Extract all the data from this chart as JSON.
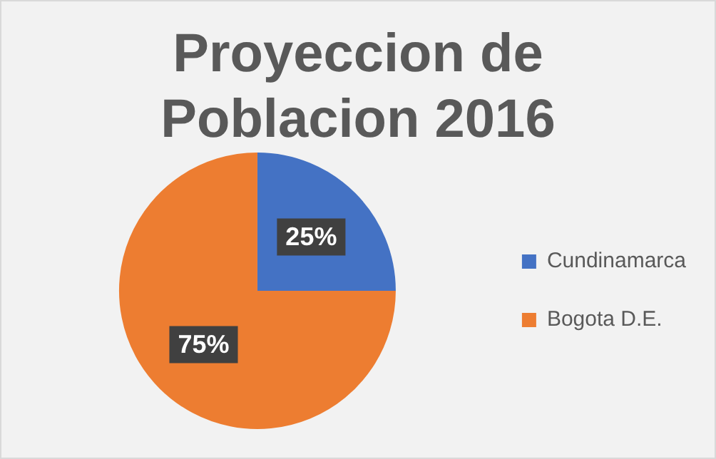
{
  "chart_data": {
    "type": "pie",
    "title": "Proyeccion de Poblacion 2016",
    "categories": [
      "Cundinamarca",
      "Bogota D.E."
    ],
    "values": [
      25,
      75
    ],
    "colors": [
      "#4472c4",
      "#ed7d31"
    ],
    "value_labels": [
      "25%",
      "75%"
    ],
    "legend": "right"
  }
}
